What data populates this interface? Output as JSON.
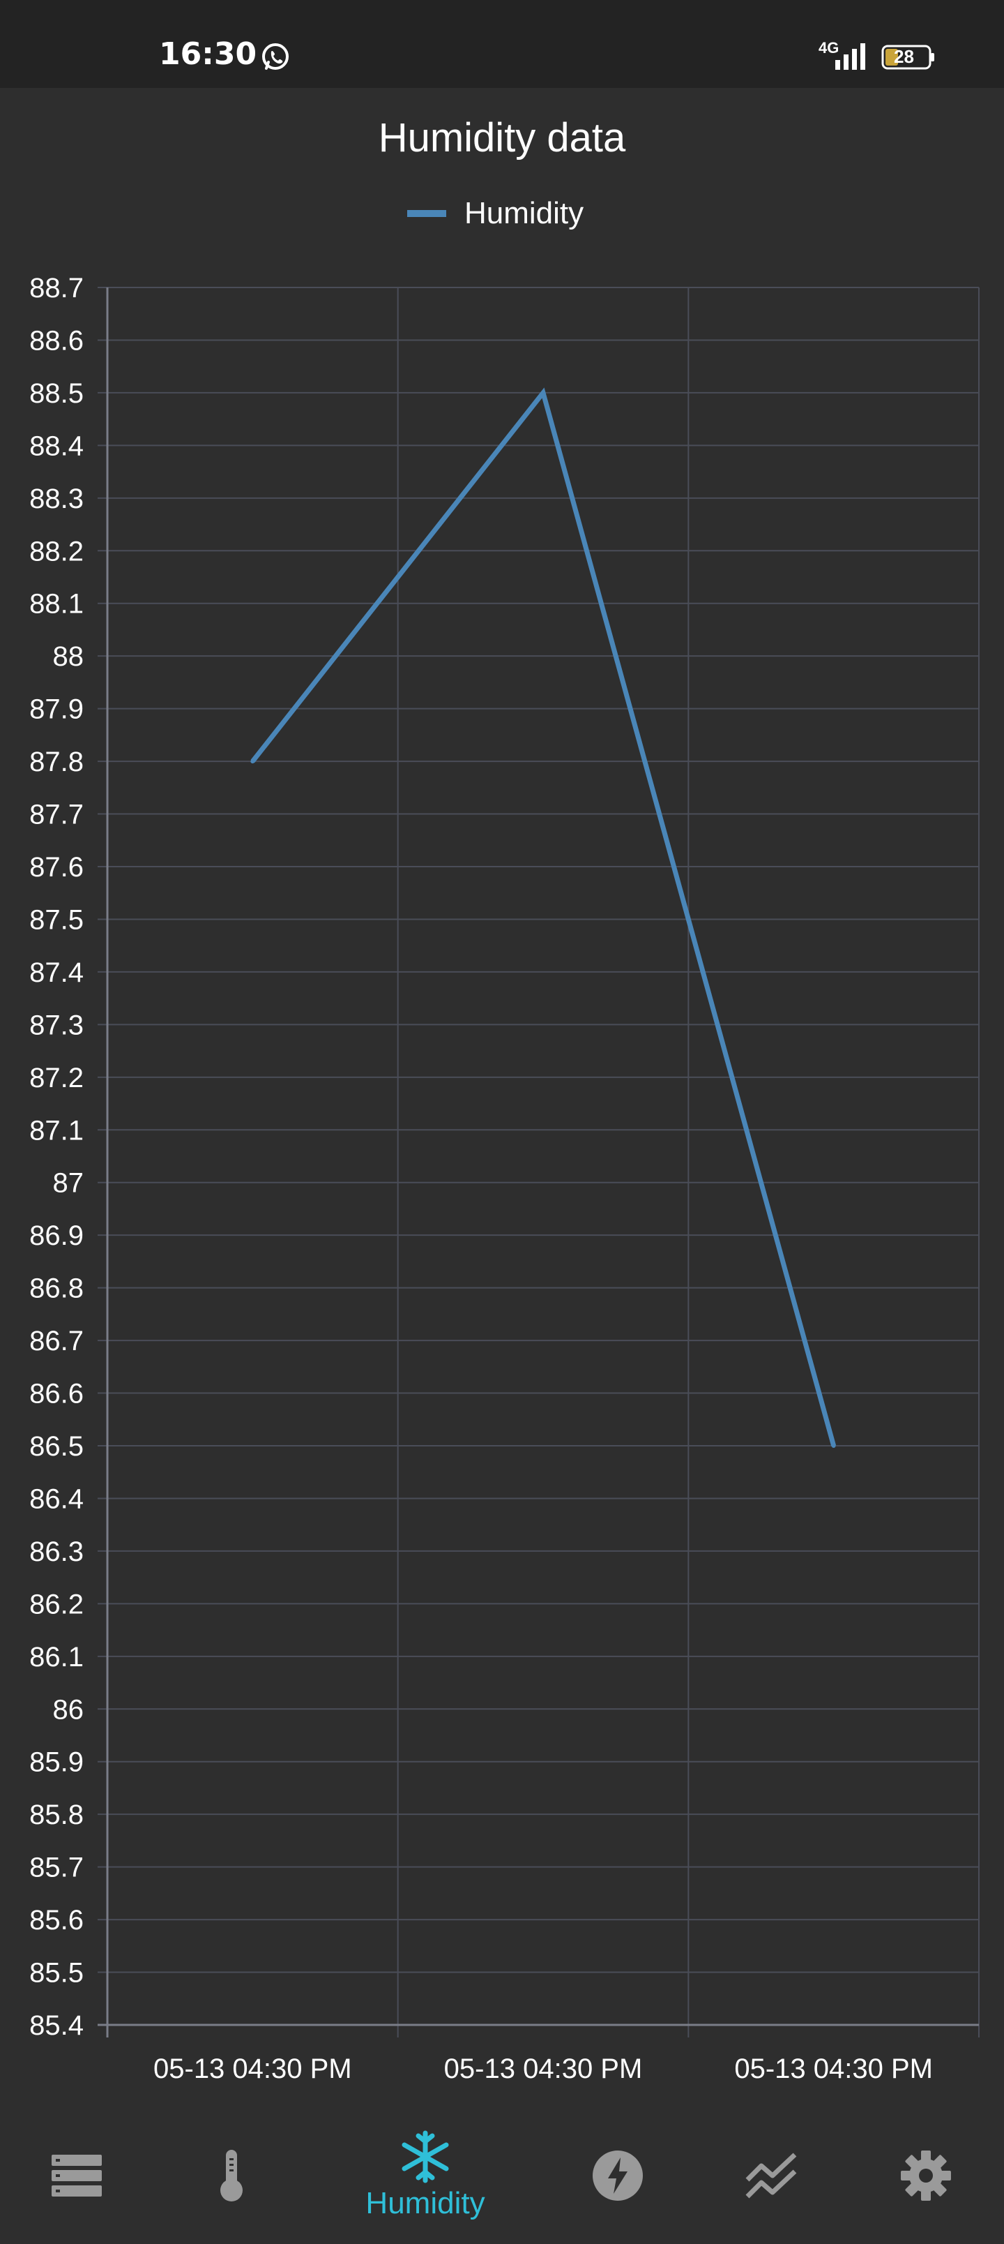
{
  "status_bar": {
    "time": "16:30",
    "network": "4G",
    "battery": "28"
  },
  "chart_data": {
    "type": "line",
    "title": "Humidity data",
    "legend_position": "top",
    "grid": true,
    "xlabel": "",
    "ylabel": "",
    "ylim": [
      85.4,
      88.7
    ],
    "y_ticks": [
      "88.7",
      "88.6",
      "88.5",
      "88.4",
      "88.3",
      "88.2",
      "88.1",
      "88",
      "87.9",
      "87.8",
      "87.7",
      "87.6",
      "87.5",
      "87.4",
      "87.3",
      "87.2",
      "87.1",
      "87",
      "86.9",
      "86.8",
      "86.7",
      "86.6",
      "86.5",
      "86.4",
      "86.3",
      "86.2",
      "86.1",
      "86",
      "85.9",
      "85.8",
      "85.7",
      "85.6",
      "85.5",
      "85.4"
    ],
    "categories": [
      "05-13 04:30 PM",
      "05-13 04:30 PM",
      "05-13 04:30 PM"
    ],
    "series": [
      {
        "name": "Humidity",
        "values": [
          87.8,
          88.5,
          86.5
        ],
        "color": "#4a86b8"
      }
    ]
  },
  "nav": {
    "items": [
      {
        "icon": "list-icon",
        "label": ""
      },
      {
        "icon": "thermometer-icon",
        "label": ""
      },
      {
        "icon": "snowflake-icon",
        "label": "Humidity",
        "active": true
      },
      {
        "icon": "lightning-icon",
        "label": ""
      },
      {
        "icon": "trend-icon",
        "label": ""
      },
      {
        "icon": "gear-icon",
        "label": ""
      }
    ],
    "active_color": "#2fbfd8",
    "inactive_color": "#9a9a9a"
  }
}
